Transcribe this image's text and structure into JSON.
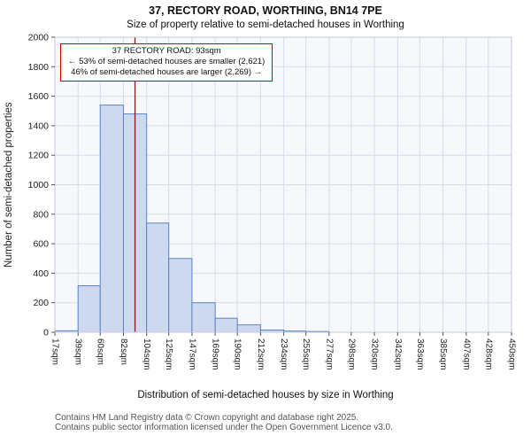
{
  "title": "37, RECTORY ROAD, WORTHING, BN14 7PE",
  "subtitle": "Size of property relative to semi-detached houses in Worthing",
  "annotation": {
    "line1": "37 RECTORY ROAD: 93sqm",
    "line2": "← 53% of semi-detached houses are smaller (2,621)",
    "line3": "46% of semi-detached houses are larger (2,269) →"
  },
  "chart_data": {
    "type": "bar",
    "title": "Size of property relative to semi-detached houses in Worthing",
    "xlabel": "Distribution of semi-detached houses by size in Worthing",
    "ylabel": "Number of semi-detached properties",
    "bin_unit": "sqm",
    "bin_edges": [
      17,
      39,
      60,
      82,
      104,
      125,
      147,
      169,
      190,
      212,
      234,
      255,
      277,
      298,
      320,
      342,
      363,
      385,
      407,
      428,
      450
    ],
    "values": [
      10,
      315,
      1540,
      1480,
      740,
      500,
      200,
      95,
      50,
      15,
      8,
      5,
      0,
      0,
      0,
      0,
      0,
      0,
      0,
      0
    ],
    "ylim": [
      0,
      2000
    ],
    "yticks": [
      0,
      200,
      400,
      600,
      800,
      1000,
      1200,
      1400,
      1600,
      1800,
      2000
    ],
    "marker_value": 93,
    "grid": true,
    "legend": "none",
    "colors": {
      "bar_fill": "#cdd9ef",
      "bar_stroke": "#5b84c4",
      "plot_bg": "#f6f8fc",
      "grid": "#d4dcea",
      "spine": "#c4cad4",
      "tick": "#555555",
      "text": "#222222",
      "marker": "#8b1a1a",
      "annotation_border": "#cc0000"
    }
  },
  "footer": {
    "line1": "Contains HM Land Registry data © Crown copyright and database right 2025.",
    "line2": "Contains public sector information licensed under the Open Government Licence v3.0."
  }
}
